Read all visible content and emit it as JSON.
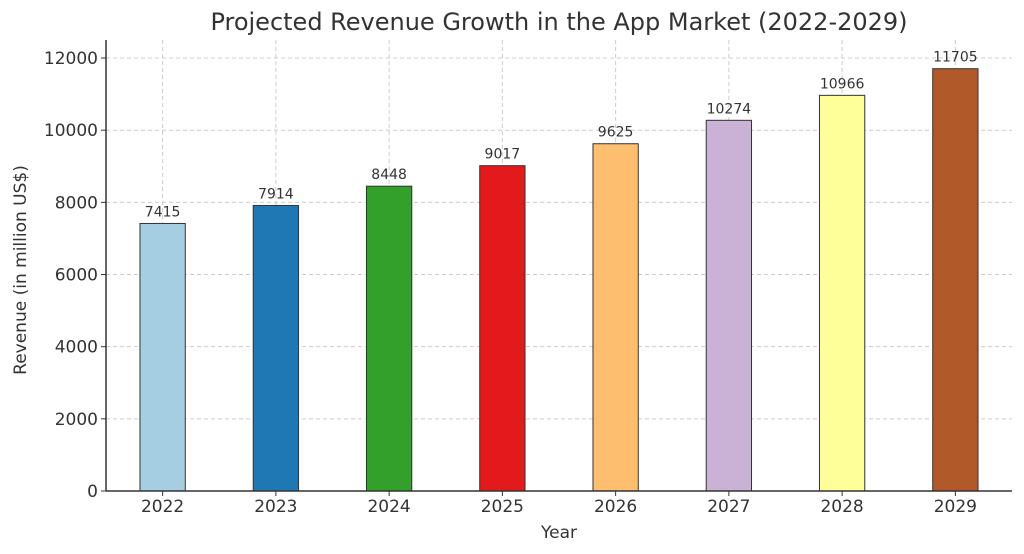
{
  "chart_data": {
    "type": "bar",
    "title": "Projected Revenue Growth in the App Market (2022-2029)",
    "xlabel": "Year",
    "ylabel": "Revenue (in million US$)",
    "categories": [
      "2022",
      "2023",
      "2024",
      "2025",
      "2026",
      "2027",
      "2028",
      "2029"
    ],
    "values": [
      7415,
      7914,
      8448,
      9017,
      9625,
      10274,
      10966,
      11705
    ],
    "colors": [
      "#a6cee3",
      "#1f78b4",
      "#33a02c",
      "#e31a1c",
      "#fdbf6f",
      "#cab2d6",
      "#ffff99",
      "#b15928"
    ],
    "ylim": [
      0,
      12500
    ],
    "yticks": [
      0,
      2000,
      4000,
      6000,
      8000,
      10000,
      12000
    ],
    "grid": true,
    "legend": "none"
  }
}
